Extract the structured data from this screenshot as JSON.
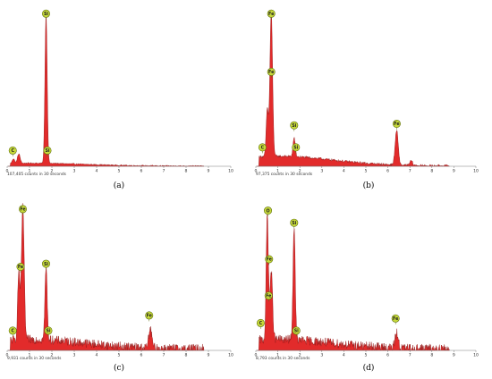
{
  "colors": {
    "spectrum_fill": "#e22b2b",
    "spectrum_line": "#8c0f0f",
    "badge_fill": "#c6d93a",
    "badge_stroke": "#5e6e0c",
    "axis": "#7a7a7a"
  },
  "chart_data": [
    {
      "type": "area",
      "panel": "(a)",
      "counts_text": "107,405 counts in 30 seconds",
      "xlim": [
        0,
        10
      ],
      "x_ticks": [
        "0",
        "1",
        "2",
        "3",
        "4",
        "5",
        "6",
        "7",
        "8",
        "9",
        "10"
      ],
      "ylim": [
        0,
        100
      ],
      "baseline": 1.5,
      "noise": 0.4,
      "peaks": [
        {
          "label": "Si",
          "x": 1.74,
          "height": 95,
          "width": 0.05
        },
        {
          "label": "O",
          "x": 0.52,
          "height": 6,
          "width": 0.06
        },
        {
          "label": "C",
          "x": 0.28,
          "height": 3,
          "width": 0.05
        }
      ],
      "badges": [
        {
          "text": "Si",
          "x": 1.74,
          "y": 97
        },
        {
          "text": "C",
          "x": 0.25,
          "y": 10
        },
        {
          "text": "Si",
          "x": 1.8,
          "y": 10
        }
      ]
    },
    {
      "type": "area",
      "panel": "(b)",
      "counts_text": "97,375 counts in 30 seconds",
      "xlim": [
        0,
        10
      ],
      "x_ticks": [
        "0",
        "1",
        "2",
        "3",
        "4",
        "5",
        "6",
        "7",
        "8",
        "9",
        "10"
      ],
      "ylim": [
        0,
        100
      ],
      "baseline": 5,
      "noise": 0.8,
      "peaks": [
        {
          "label": "Fe",
          "x": 0.7,
          "height": 92,
          "width": 0.06
        },
        {
          "label": "O",
          "x": 0.52,
          "height": 30,
          "width": 0.05
        },
        {
          "label": "Si",
          "x": 1.74,
          "height": 12,
          "width": 0.05
        },
        {
          "label": "Fe",
          "x": 6.4,
          "height": 22,
          "width": 0.07
        },
        {
          "label": "Fe",
          "x": 7.06,
          "height": 3,
          "width": 0.06
        }
      ],
      "badges": [
        {
          "text": "Fe",
          "x": 0.7,
          "y": 97
        },
        {
          "text": "Fe",
          "x": 0.7,
          "y": 60
        },
        {
          "text": "Si",
          "x": 1.74,
          "y": 26
        },
        {
          "text": "C",
          "x": 0.3,
          "y": 12
        },
        {
          "text": "Si",
          "x": 1.82,
          "y": 12
        },
        {
          "text": "Fe",
          "x": 6.4,
          "y": 27
        }
      ]
    },
    {
      "type": "area",
      "panel": "(c)",
      "counts_text": "9,931 counts in 30 seconds",
      "xlim": [
        0,
        10
      ],
      "x_ticks": [
        "0",
        "1",
        "2",
        "3",
        "4",
        "5",
        "6",
        "7",
        "8",
        "9",
        "10"
      ],
      "ylim": [
        0,
        100
      ],
      "baseline": 5,
      "noise": 3.0,
      "peaks": [
        {
          "label": "Fe",
          "x": 0.7,
          "height": 88,
          "width": 0.06
        },
        {
          "label": "O",
          "x": 0.52,
          "height": 45,
          "width": 0.05
        },
        {
          "label": "Si",
          "x": 1.74,
          "height": 48,
          "width": 0.05
        },
        {
          "label": "Fe",
          "x": 6.4,
          "height": 12,
          "width": 0.07
        }
      ],
      "badges": [
        {
          "text": "Fe",
          "x": 0.7,
          "y": 93
        },
        {
          "text": "Fe",
          "x": 0.6,
          "y": 55
        },
        {
          "text": "Si",
          "x": 1.74,
          "y": 57
        },
        {
          "text": "C",
          "x": 0.25,
          "y": 13
        },
        {
          "text": "Si",
          "x": 1.84,
          "y": 13
        },
        {
          "text": "Fe",
          "x": 6.35,
          "y": 23
        }
      ]
    },
    {
      "type": "area",
      "panel": "(d)",
      "counts_text": "8,793 counts in 30 seconds",
      "xlim": [
        0,
        10
      ],
      "x_ticks": [
        "0",
        "1",
        "2",
        "3",
        "4",
        "5",
        "6",
        "7",
        "8",
        "9",
        "10"
      ],
      "ylim": [
        0,
        100
      ],
      "baseline": 5,
      "noise": 3.0,
      "peaks": [
        {
          "label": "O",
          "x": 0.52,
          "height": 82,
          "width": 0.05
        },
        {
          "label": "Fe",
          "x": 0.7,
          "height": 45,
          "width": 0.06
        },
        {
          "label": "Si",
          "x": 1.74,
          "height": 75,
          "width": 0.05
        },
        {
          "label": "Fe",
          "x": 6.4,
          "height": 10,
          "width": 0.07
        }
      ],
      "badges": [
        {
          "text": "O",
          "x": 0.55,
          "y": 92
        },
        {
          "text": "Fe",
          "x": 0.6,
          "y": 60
        },
        {
          "text": "Si",
          "x": 1.74,
          "y": 84
        },
        {
          "text": "Fe",
          "x": 0.58,
          "y": 36
        },
        {
          "text": "C",
          "x": 0.22,
          "y": 18
        },
        {
          "text": "Si",
          "x": 1.84,
          "y": 13
        },
        {
          "text": "Fe",
          "x": 6.35,
          "y": 21
        }
      ]
    }
  ]
}
